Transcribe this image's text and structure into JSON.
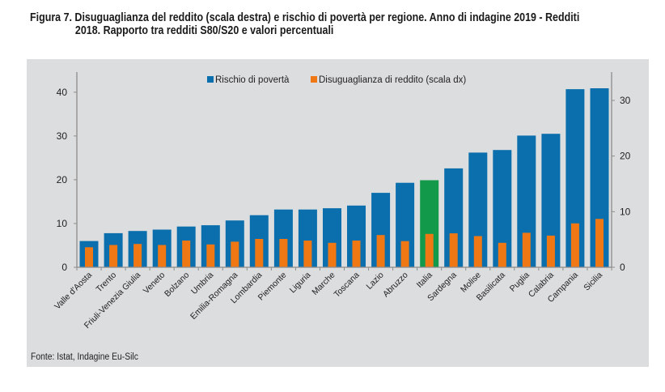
{
  "title": {
    "line1": "Figura 7. Disuguaglianza del reddito (scala destra) e rischio di povertà per regione. Anno di indagine 2019 - Redditi",
    "line2": "2018. Rapporto tra redditi S80/S20 e valori percentuali"
  },
  "source": "Fonte: Istat, Indagine Eu-Silc",
  "colors": {
    "rischio": "#0b6fad",
    "italia": "#13994a",
    "disuguaglianza": "#f07814",
    "panel": "#dcddde",
    "axis": "#8c8c8c"
  },
  "chart_data": {
    "type": "bar",
    "title": "Disuguaglianza del reddito (scala destra) e rischio di povertà per regione. Anno di indagine 2019 - Redditi 2018. Rapporto tra redditi S80/S20 e valori percentuali",
    "categories": [
      "Valle d'Aosta",
      "Trento",
      "Friuli-Venezia Giulia",
      "Veneto",
      "Bolzano",
      "Umbria",
      "Emilia-Romagna",
      "Lombardia",
      "Piemonte",
      "Liguria",
      "Marche",
      "Toscana",
      "Lazio",
      "Abruzzo",
      "Italia",
      "Sardegna",
      "Molise",
      "Basilicata",
      "Puglia",
      "Calabria",
      "Campania",
      "Sicilia"
    ],
    "highlight_category": "Italia",
    "series": [
      {
        "name": "Rischio di povertà",
        "axis": "left",
        "values": [
          6.0,
          7.8,
          8.3,
          8.6,
          9.3,
          9.6,
          10.7,
          11.9,
          13.2,
          13.2,
          13.5,
          14.1,
          17.0,
          19.3,
          19.9,
          22.6,
          26.2,
          26.8,
          30.1,
          30.5,
          40.7,
          40.9
        ]
      },
      {
        "name": "Disuguaglianza di reddito (scala dx)",
        "axis": "right",
        "values": [
          3.6,
          4.0,
          4.2,
          4.0,
          4.8,
          4.1,
          4.6,
          5.1,
          5.1,
          4.8,
          4.4,
          4.8,
          5.8,
          4.7,
          6.0,
          6.1,
          5.6,
          4.4,
          6.2,
          5.7,
          7.9,
          8.7
        ]
      }
    ],
    "y_left": {
      "ylim": [
        0,
        44.6
      ],
      "ticks": [
        0,
        10,
        20,
        30,
        40
      ]
    },
    "y_right": {
      "ylim": [
        0,
        35.1
      ],
      "ticks": [
        0,
        10,
        20,
        30
      ]
    },
    "xlabel": "",
    "ylabel": "",
    "grid": false,
    "legend": {
      "placement": "top-center",
      "entries": [
        "Rischio di povertà",
        "Disuguaglianza di reddito (scala dx)"
      ]
    }
  }
}
